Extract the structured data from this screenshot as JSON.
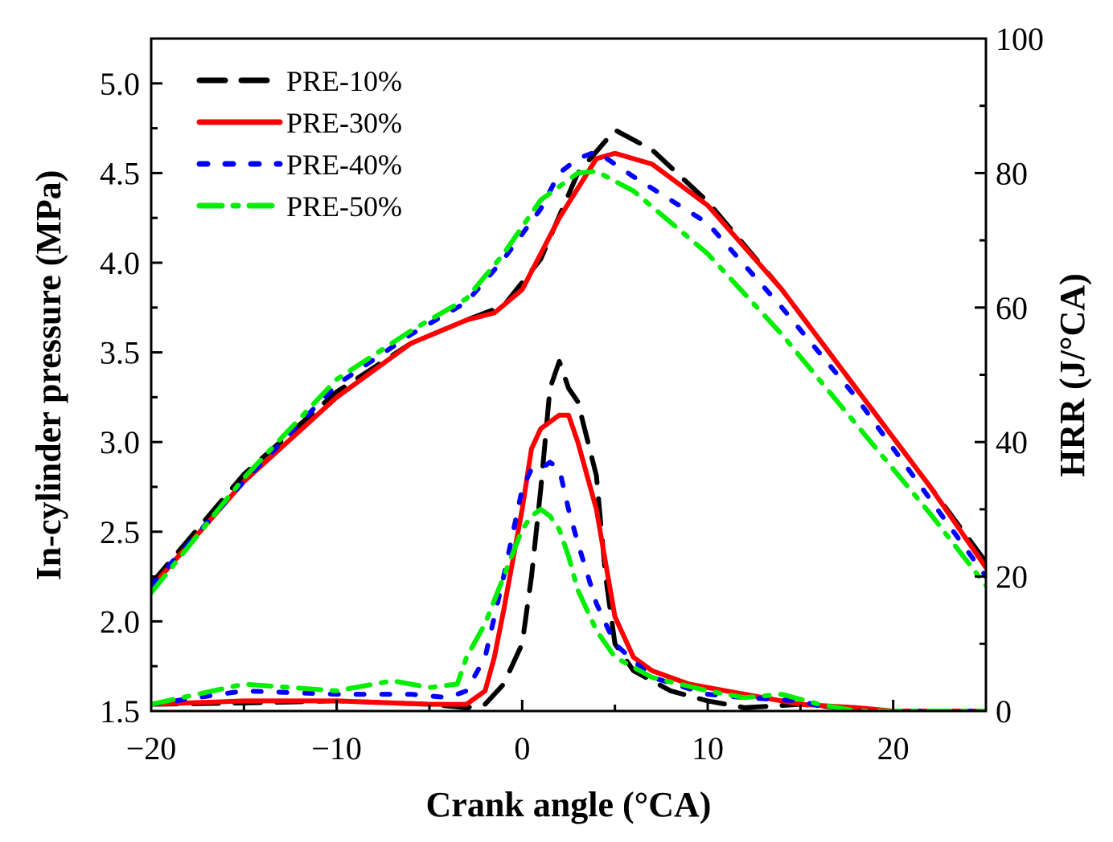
{
  "chart_data": {
    "type": "line",
    "title": "",
    "xlabel": "Crank angle (°CA)",
    "ylabel_left": "In-cylinder pressure (MPa)",
    "ylabel_right": "HRR (J/°CA)",
    "xlim": [
      -20,
      25
    ],
    "ylim_left": [
      1.5,
      5.25
    ],
    "ylim_right": [
      0,
      100
    ],
    "x_ticks": [
      -20,
      -10,
      0,
      10,
      20
    ],
    "x_tick_labels": [
      "−20",
      "−10",
      "0",
      "10",
      "20"
    ],
    "y_left_ticks": [
      1.5,
      2.0,
      2.5,
      3.0,
      3.5,
      4.0,
      4.5,
      5.0
    ],
    "y_left_tick_labels": [
      "1.5",
      "2.0",
      "2.5",
      "3.0",
      "3.5",
      "4.0",
      "4.5",
      "5.0"
    ],
    "y_right_ticks": [
      0,
      20,
      40,
      60,
      80,
      100
    ],
    "y_right_tick_labels": [
      "0",
      "20",
      "40",
      "60",
      "80",
      "100"
    ],
    "grid": false,
    "legend_position": "top-left",
    "series": [
      {
        "name": "PRE-10%",
        "color": "#000000",
        "dash": "32,20",
        "pressure": [
          [
            -20,
            2.21
          ],
          [
            -15,
            2.82
          ],
          [
            -10,
            3.28
          ],
          [
            -6,
            3.55
          ],
          [
            -3,
            3.68
          ],
          [
            -1,
            3.76
          ],
          [
            1,
            4.02
          ],
          [
            3,
            4.5
          ],
          [
            5,
            4.74
          ],
          [
            7,
            4.63
          ],
          [
            10,
            4.34
          ],
          [
            14,
            3.85
          ],
          [
            18,
            3.3
          ],
          [
            22,
            2.75
          ],
          [
            25,
            2.33
          ]
        ],
        "hrr": [
          [
            -20,
            1
          ],
          [
            -15,
            1.2
          ],
          [
            -10,
            1.5
          ],
          [
            -5,
            1
          ],
          [
            -3,
            0.5
          ],
          [
            -2,
            1
          ],
          [
            -1,
            4
          ],
          [
            0,
            10
          ],
          [
            0.5,
            20
          ],
          [
            1,
            33
          ],
          [
            1.5,
            48
          ],
          [
            2,
            52
          ],
          [
            2.5,
            48
          ],
          [
            3,
            46
          ],
          [
            4,
            35
          ],
          [
            4.5,
            20
          ],
          [
            5,
            10
          ],
          [
            6,
            6
          ],
          [
            8,
            3
          ],
          [
            10,
            1.5
          ],
          [
            12,
            0.5
          ],
          [
            15,
            1
          ],
          [
            18,
            0.3
          ],
          [
            20,
            0
          ],
          [
            25,
            0
          ]
        ]
      },
      {
        "name": "PRE-30%",
        "color": "#ff0000",
        "dash": "",
        "pressure": [
          [
            -20,
            2.19
          ],
          [
            -15,
            2.78
          ],
          [
            -10,
            3.25
          ],
          [
            -6,
            3.55
          ],
          [
            -3,
            3.68
          ],
          [
            -1.5,
            3.72
          ],
          [
            0,
            3.85
          ],
          [
            2,
            4.25
          ],
          [
            4,
            4.58
          ],
          [
            5,
            4.61
          ],
          [
            7,
            4.55
          ],
          [
            10,
            4.32
          ],
          [
            14,
            3.85
          ],
          [
            18,
            3.3
          ],
          [
            22,
            2.75
          ],
          [
            25,
            2.3
          ]
        ],
        "hrr": [
          [
            -20,
            1
          ],
          [
            -15,
            1.5
          ],
          [
            -10,
            1.5
          ],
          [
            -5,
            1
          ],
          [
            -3,
            1
          ],
          [
            -2,
            3
          ],
          [
            -1.5,
            8
          ],
          [
            -1,
            15
          ],
          [
            0,
            30
          ],
          [
            0.5,
            39
          ],
          [
            1,
            42
          ],
          [
            1.5,
            43
          ],
          [
            2,
            44
          ],
          [
            2.5,
            44
          ],
          [
            3,
            40
          ],
          [
            4,
            30
          ],
          [
            4.5,
            22
          ],
          [
            5,
            14
          ],
          [
            6,
            8
          ],
          [
            7,
            6
          ],
          [
            9,
            4
          ],
          [
            11,
            3
          ],
          [
            13,
            2
          ],
          [
            15,
            1
          ],
          [
            18,
            0.5
          ],
          [
            20,
            0
          ],
          [
            25,
            0
          ]
        ]
      },
      {
        "name": "PRE-40%",
        "color": "#0000ff",
        "dash": "10,22",
        "pressure": [
          [
            -20,
            2.2
          ],
          [
            -15,
            2.78
          ],
          [
            -10,
            3.32
          ],
          [
            -6,
            3.6
          ],
          [
            -3,
            3.78
          ],
          [
            -1,
            4.02
          ],
          [
            1,
            4.3
          ],
          [
            2,
            4.5
          ],
          [
            3,
            4.58
          ],
          [
            4,
            4.62
          ],
          [
            6,
            4.48
          ],
          [
            10,
            4.22
          ],
          [
            14,
            3.75
          ],
          [
            18,
            3.25
          ],
          [
            22,
            2.68
          ],
          [
            25,
            2.25
          ]
        ],
        "hrr": [
          [
            -20,
            1
          ],
          [
            -15,
            3
          ],
          [
            -10,
            2.5
          ],
          [
            -6,
            2.5
          ],
          [
            -4,
            2
          ],
          [
            -3,
            3
          ],
          [
            -2,
            8
          ],
          [
            -1,
            20
          ],
          [
            0,
            33
          ],
          [
            0.5,
            36
          ],
          [
            1,
            36
          ],
          [
            1.5,
            37
          ],
          [
            2,
            36
          ],
          [
            2.5,
            30
          ],
          [
            3,
            25
          ],
          [
            4,
            16
          ],
          [
            5,
            10
          ],
          [
            7,
            5
          ],
          [
            10,
            2.5
          ],
          [
            12,
            2
          ],
          [
            15,
            1.5
          ],
          [
            17,
            0
          ],
          [
            20,
            0
          ],
          [
            25,
            0
          ]
        ]
      },
      {
        "name": "PRE-50%",
        "color": "#00ee00",
        "dash": "28,14,6,14",
        "pressure": [
          [
            -20,
            2.16
          ],
          [
            -15,
            2.8
          ],
          [
            -10,
            3.35
          ],
          [
            -6,
            3.62
          ],
          [
            -3,
            3.8
          ],
          [
            -1,
            4.05
          ],
          [
            1,
            4.35
          ],
          [
            3,
            4.5
          ],
          [
            4,
            4.51
          ],
          [
            6,
            4.4
          ],
          [
            10,
            4.05
          ],
          [
            14,
            3.6
          ],
          [
            18,
            3.1
          ],
          [
            22,
            2.6
          ],
          [
            25,
            2.2
          ]
        ],
        "hrr": [
          [
            -20,
            1
          ],
          [
            -15,
            4
          ],
          [
            -10,
            3
          ],
          [
            -7,
            4.5
          ],
          [
            -5,
            3.5
          ],
          [
            -3.5,
            4
          ],
          [
            -3,
            8
          ],
          [
            -2,
            13
          ],
          [
            -1,
            20
          ],
          [
            0,
            27
          ],
          [
            0.5,
            29
          ],
          [
            1,
            30
          ],
          [
            1.5,
            29
          ],
          [
            2,
            27
          ],
          [
            2.5,
            23
          ],
          [
            3,
            18
          ],
          [
            4,
            12
          ],
          [
            5,
            8
          ],
          [
            7,
            5
          ],
          [
            10,
            3
          ],
          [
            12,
            2
          ],
          [
            14,
            2.5
          ],
          [
            16,
            1
          ],
          [
            18,
            0
          ],
          [
            20,
            0
          ],
          [
            25,
            0
          ]
        ]
      }
    ]
  }
}
